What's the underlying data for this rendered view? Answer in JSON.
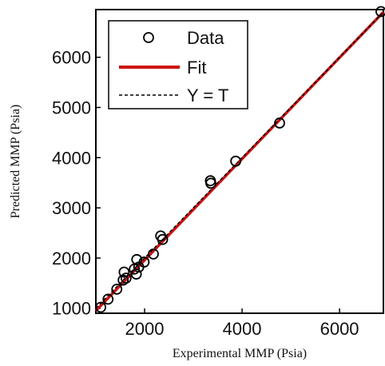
{
  "chart_data": {
    "type": "scatter",
    "xlabel": "Experimental MMP (Psia)",
    "ylabel": "Predicted MMP (Psia)",
    "xlim": [
      1000,
      6900
    ],
    "ylim": [
      900,
      6950
    ],
    "xticks": [
      2000,
      4000,
      6000
    ],
    "yticks": [
      1000,
      2000,
      3000,
      4000,
      5000,
      6000
    ],
    "grid": false,
    "legend_position": "top-left",
    "series": [
      {
        "name": "Data",
        "kind": "markers",
        "marker": "open-circle",
        "color": "#000000",
        "points": [
          {
            "x": 1100,
            "y": 1020
          },
          {
            "x": 1250,
            "y": 1180
          },
          {
            "x": 1430,
            "y": 1380
          },
          {
            "x": 1560,
            "y": 1560
          },
          {
            "x": 1580,
            "y": 1720
          },
          {
            "x": 1620,
            "y": 1600
          },
          {
            "x": 1790,
            "y": 1780
          },
          {
            "x": 1830,
            "y": 1680
          },
          {
            "x": 1840,
            "y": 1970
          },
          {
            "x": 1880,
            "y": 1820
          },
          {
            "x": 1990,
            "y": 1920
          },
          {
            "x": 2180,
            "y": 2080
          },
          {
            "x": 2330,
            "y": 2440
          },
          {
            "x": 2370,
            "y": 2370
          },
          {
            "x": 3350,
            "y": 3540
          },
          {
            "x": 3360,
            "y": 3490
          },
          {
            "x": 3870,
            "y": 3930
          },
          {
            "x": 4770,
            "y": 4690
          },
          {
            "x": 6850,
            "y": 6910
          }
        ]
      },
      {
        "name": "Fit",
        "kind": "line",
        "color": "#cc1111",
        "x": [
          1000,
          6900
        ],
        "y": [
          950,
          6900
        ]
      },
      {
        "name": "Y = T",
        "kind": "dashed-line",
        "color": "#000000",
        "x": [
          1000,
          6900
        ],
        "y": [
          1000,
          6900
        ]
      }
    ]
  }
}
